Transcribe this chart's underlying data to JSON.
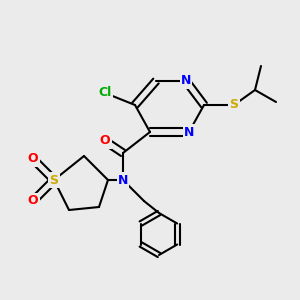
{
  "background": "#ebebeb",
  "bond_color": "#000000",
  "bond_width": 1.5,
  "atom_colors": {
    "C": "#000000",
    "N": "#0000ff",
    "O": "#ff0000",
    "S": "#ccaa00",
    "Cl": "#00aa00"
  },
  "font_size": 9,
  "font_size_small": 8
}
